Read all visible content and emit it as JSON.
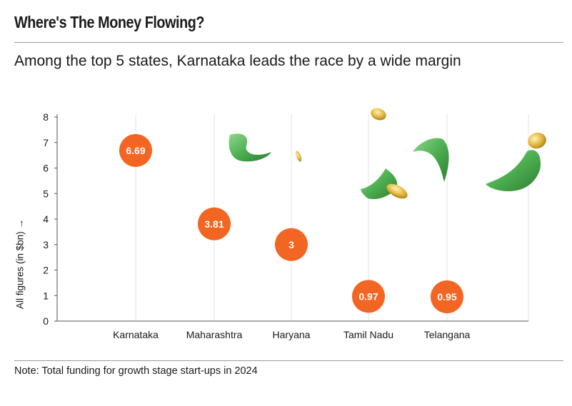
{
  "header": {
    "title": "Where's The Money Flowing?",
    "subtitle": "Among the top 5 states, Karnataka leads the race by a wide margin"
  },
  "footer": {
    "note": "Note: Total funding for growth stage start-ups in 2024"
  },
  "chart_data": {
    "type": "scatter",
    "title": "",
    "xlabel": "",
    "ylabel": "All figures (in $bn) →",
    "ylim": [
      0,
      8
    ],
    "yticks": [
      0,
      1,
      2,
      3,
      4,
      5,
      6,
      7,
      8
    ],
    "grid": "vertical",
    "categories": [
      "Karnataka",
      "Maharashtra",
      "Haryana",
      "Tamil Nadu",
      "Telangana"
    ],
    "values": [
      6.69,
      3.81,
      3,
      0.97,
      0.95
    ],
    "data_labels": [
      "6.69",
      "3.81",
      "3",
      "0.97",
      "0.95"
    ],
    "colors": {
      "marker": "#f26522",
      "marker_text": "#ffffff",
      "grid": "#e3e3e3",
      "axis": "#555555",
      "money": "#5cb85c",
      "coin": "#e0b13a"
    },
    "decorations": [
      "banknote-icon",
      "coin-icon"
    ]
  }
}
